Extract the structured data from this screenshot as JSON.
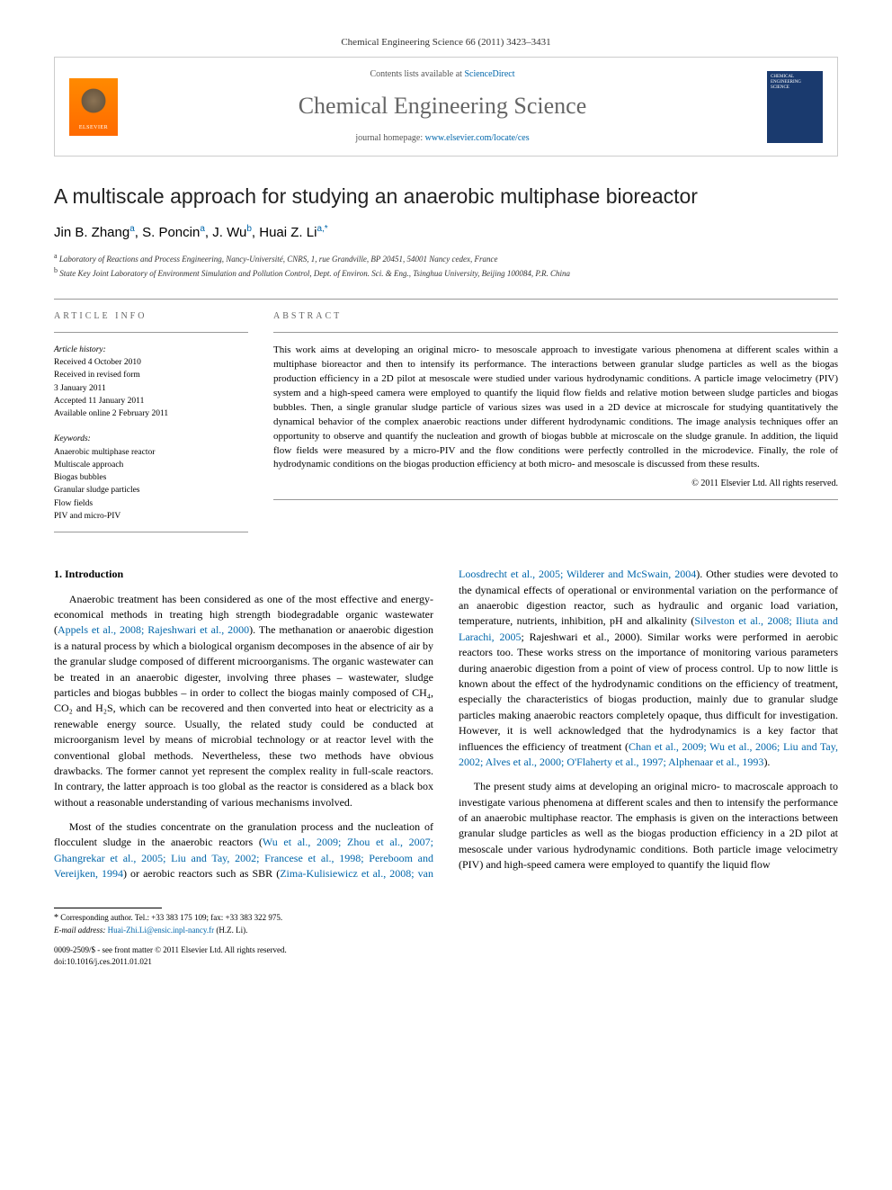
{
  "header": {
    "citation": "Chemical Engineering Science 66 (2011) 3423–3431"
  },
  "masthead": {
    "elsevier_label": "ELSEVIER",
    "contents_prefix": "Contents lists available at ",
    "contents_link": "ScienceDirect",
    "journal_name": "Chemical Engineering Science",
    "homepage_prefix": "journal homepage: ",
    "homepage_link": "www.elsevier.com/locate/ces",
    "cover_text": "CHEMICAL ENGINEERING SCIENCE"
  },
  "article": {
    "title": "A multiscale approach for studying an anaerobic multiphase bioreactor",
    "authors_html": [
      {
        "name": "Jin B. Zhang",
        "sup": "a"
      },
      {
        "name": "S. Poncin",
        "sup": "a"
      },
      {
        "name": "J. Wu",
        "sup": "b"
      },
      {
        "name": "Huai Z. Li",
        "sup": "a,*"
      }
    ],
    "affiliations": [
      {
        "sup": "a",
        "text": "Laboratory of Reactions and Process Engineering, Nancy-Université, CNRS, 1, rue Grandville, BP 20451, 54001 Nancy cedex, France"
      },
      {
        "sup": "b",
        "text": "State Key Joint Laboratory of Environment Simulation and Pollution Control, Dept. of Environ. Sci. & Eng., Tsinghua University, Beijing 100084, P.R. China"
      }
    ]
  },
  "info": {
    "label": "ARTICLE INFO",
    "history_head": "Article history:",
    "history": [
      "Received 4 October 2010",
      "Received in revised form",
      "3 January 2011",
      "Accepted 11 January 2011",
      "Available online 2 February 2011"
    ],
    "keywords_head": "Keywords:",
    "keywords": [
      "Anaerobic multiphase reactor",
      "Multiscale approach",
      "Biogas bubbles",
      "Granular sludge particles",
      "Flow fields",
      "PIV and micro-PIV"
    ]
  },
  "abstract": {
    "label": "ABSTRACT",
    "text": "This work aims at developing an original micro- to mesoscale approach to investigate various phenomena at different scales within a multiphase bioreactor and then to intensify its performance. The interactions between granular sludge particles as well as the biogas production efficiency in a 2D pilot at mesoscale were studied under various hydrodynamic conditions. A particle image velocimetry (PIV) system and a high-speed camera were employed to quantify the liquid flow fields and relative motion between sludge particles and biogas bubbles. Then, a single granular sludge particle of various sizes was used in a 2D device at microscale for studying quantitatively the dynamical behavior of the complex anaerobic reactions under different hydrodynamic conditions. The image analysis techniques offer an opportunity to observe and quantify the nucleation and growth of biogas bubble at microscale on the sludge granule. In addition, the liquid flow fields were measured by a micro-PIV and the flow conditions were perfectly controlled in the microdevice. Finally, the role of hydrodynamic conditions on the biogas production efficiency at both micro- and mesoscale is discussed from these results.",
    "copyright": "© 2011 Elsevier Ltd. All rights reserved."
  },
  "body": {
    "heading": "1. Introduction",
    "p1_a": "Anaerobic treatment has been considered as one of the most effective and energy-economical methods in treating high strength biodegradable organic wastewater (",
    "p1_ref1": "Appels et al., 2008; Rajeshwari et al., 2000",
    "p1_b": "). The methanation or anaerobic digestion is a natural process by which a biological organism decomposes in the absence of air by the granular sludge composed of different microorganisms. The organic wastewater can be treated in an anaerobic digester, involving three phases – wastewater, sludge particles and biogas bubbles – in order to collect the biogas mainly composed of CH₄, CO₂ and H₂S, which can be recovered and then converted into heat or electricity as a renewable energy source. Usually, the related study could be conducted at microorganism level by means of microbial technology or at reactor level with the conventional global methods. Nevertheless, these two methods have obvious drawbacks. The former cannot yet represent the complex reality in full-scale reactors. In contrary, the latter approach is too global as the reactor is considered as a black box without a reasonable understanding of various mechanisms involved.",
    "p2_a": "Most of the studies concentrate on the granulation process and the nucleation of flocculent sludge in the anaerobic reactors (",
    "p2_ref1": "Wu et al., 2009; Zhou et al., 2007; Ghangrekar et al., 2005; Liu and Tay, 2002; Francese et al., 1998; Pereboom and Vereijken, 1994",
    "p2_b": ") or aerobic reactors such as SBR (",
    "p2_ref2": "Zima-Kulisiewicz et al., 2008; van Loosdrecht et al., 2005; Wilderer and McSwain, 2004",
    "p2_c": "). Other studies were devoted to the dynamical effects of operational or environmental variation on the performance of an anaerobic digestion reactor, such as hydraulic and organic load variation, temperature, nutrients, inhibition, pH and alkalinity (",
    "p2_ref3": "Silveston et al., 2008; Iliuta and Larachi, 2005",
    "p2_d": "; Rajeshwari et al., 2000). Similar works were performed in aerobic reactors too. These works stress on the importance of monitoring various parameters during anaerobic digestion from a point of view of process control. Up to now little is known about the effect of the hydrodynamic conditions on the efficiency of treatment, especially the characteristics of biogas production, mainly due to granular sludge particles making anaerobic reactors completely opaque, thus difficult for investigation. However, it is well acknowledged that the hydrodynamics is a key factor that influences the efficiency of treatment (",
    "p2_ref4": "Chan et al., 2009; Wu et al., 2006; Liu and Tay, 2002; Alves et al., 2000; O'Flaherty et al., 1997; Alphenaar et al., 1993",
    "p2_e": ").",
    "p3": "The present study aims at developing an original micro- to macroscale approach to investigate various phenomena at different scales and then to intensify the performance of an anaerobic multiphase reactor. The emphasis is given on the interactions between granular sludge particles as well as the biogas production efficiency in a 2D pilot at mesoscale under various hydrodynamic conditions. Both particle image velocimetry (PIV) and high-speed camera were employed to quantify the liquid flow"
  },
  "footer": {
    "corr": "Corresponding author. Tel.: +33 383 175 109; fax: +33 383 322 975.",
    "email_label": "E-mail address:",
    "email": "Huai-Zhi.Li@ensic.inpl-nancy.fr",
    "email_name": "(H.Z. Li).",
    "issn": "0009-2509/$ - see front matter © 2011 Elsevier Ltd. All rights reserved.",
    "doi": "doi:10.1016/j.ces.2011.01.021"
  },
  "colors": {
    "link": "#0066aa",
    "elsevier_orange": "#ff6a00",
    "cover_blue": "#1a3a6e",
    "text": "#000000",
    "muted": "#666666"
  }
}
